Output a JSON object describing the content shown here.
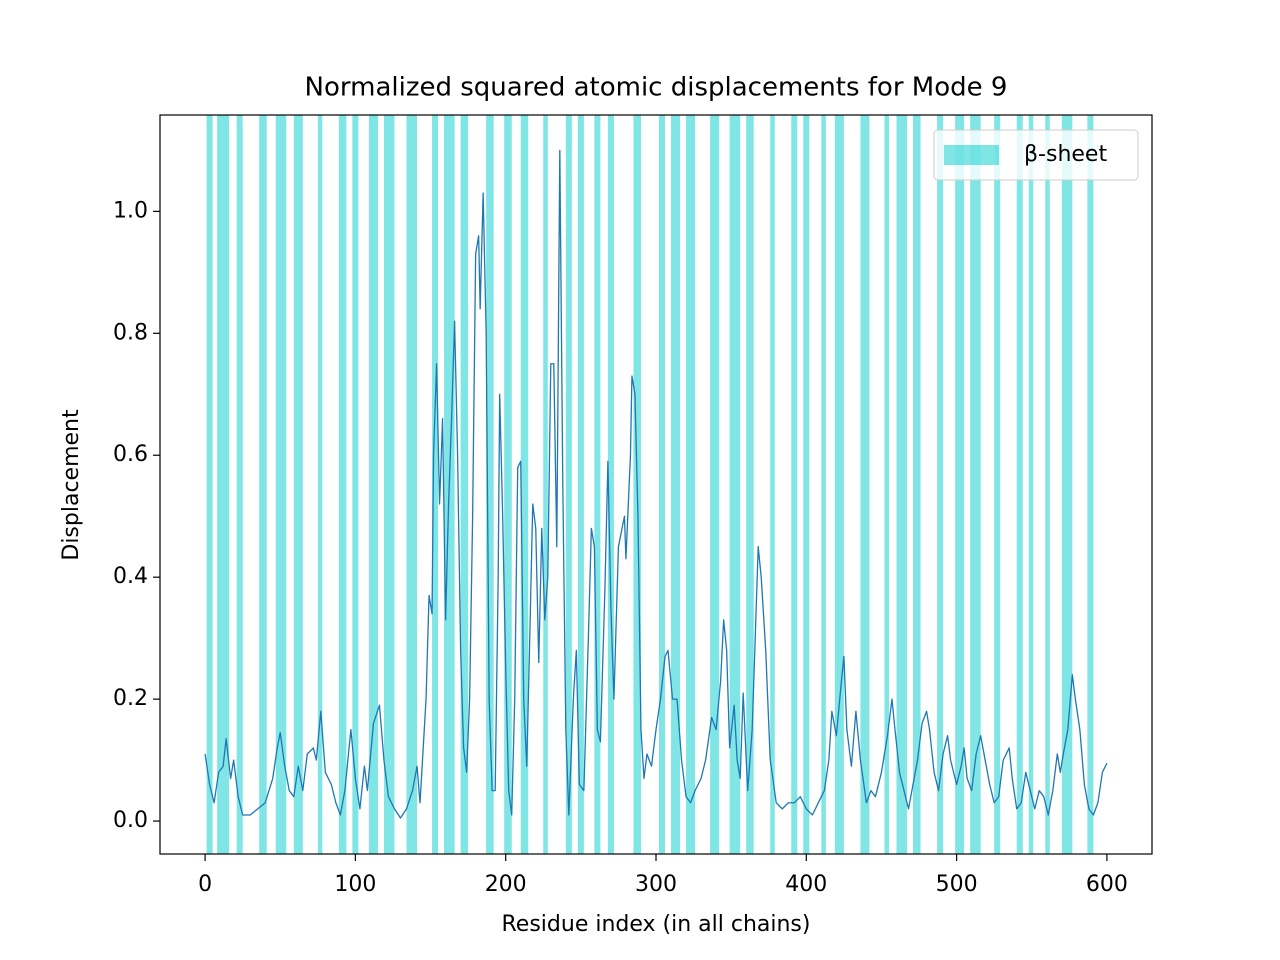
{
  "chart_data": {
    "type": "line",
    "title": "Normalized squared atomic displacements for Mode 9",
    "xlabel": "Residue index (in all chains)",
    "ylabel": "Displacement",
    "color": "#1f77b4",
    "xlim": [
      -30,
      630
    ],
    "ylim": [
      -0.054,
      1.158
    ],
    "xticks": [
      0,
      100,
      200,
      300,
      400,
      500,
      600
    ],
    "yticks": [
      {
        "value": 0,
        "label": "0.0"
      },
      0.2,
      0.4,
      0.6,
      0.8,
      {
        "value": 1,
        "label": "1.0"
      }
    ],
    "legend": "upper right",
    "spans": {
      "name": "β-sheet",
      "color": "#00cccc",
      "alpha": 0.5,
      "regions": [
        [
          1,
          5
        ],
        [
          8,
          16
        ],
        [
          21,
          25
        ],
        [
          36,
          41
        ],
        [
          47,
          54
        ],
        [
          59,
          65
        ],
        [
          75,
          78
        ],
        [
          89,
          94
        ],
        [
          98,
          102
        ],
        [
          109,
          115
        ],
        [
          119,
          126
        ],
        [
          134,
          141
        ],
        [
          151,
          155
        ],
        [
          159,
          166
        ],
        [
          170,
          175
        ],
        [
          187,
          192
        ],
        [
          199,
          204
        ],
        [
          210,
          215
        ],
        [
          225,
          228
        ],
        [
          240,
          244
        ],
        [
          248,
          252
        ],
        [
          259,
          263
        ],
        [
          268,
          272
        ],
        [
          285,
          290
        ],
        [
          302,
          306
        ],
        [
          310,
          316
        ],
        [
          320,
          326
        ],
        [
          336,
          342
        ],
        [
          349,
          356
        ],
        [
          360,
          365
        ],
        [
          376,
          379
        ],
        [
          390,
          394
        ],
        [
          398,
          402
        ],
        [
          410,
          413
        ],
        [
          419,
          425
        ],
        [
          436,
          442
        ],
        [
          452,
          455
        ],
        [
          460,
          467
        ],
        [
          471,
          476
        ],
        [
          487,
          491
        ],
        [
          499,
          505
        ],
        [
          509,
          516
        ],
        [
          525,
          529
        ],
        [
          540,
          544
        ],
        [
          548,
          551
        ],
        [
          559,
          562
        ],
        [
          570,
          577
        ],
        [
          587,
          591
        ]
      ]
    },
    "x": [
      0,
      3,
      6,
      9,
      12,
      14,
      17,
      19,
      22,
      25,
      30,
      35,
      40,
      45,
      48,
      50,
      53,
      56,
      59,
      62,
      65,
      68,
      72,
      74,
      77,
      80,
      84,
      87,
      90,
      93,
      97,
      100,
      103,
      106,
      108,
      112,
      116,
      119,
      122,
      126,
      130,
      134,
      138,
      141,
      143,
      147,
      149,
      151,
      152,
      154,
      156,
      158,
      160,
      162,
      164,
      166,
      168,
      170,
      172,
      174,
      176,
      178,
      180,
      182,
      183,
      185,
      187,
      189,
      191,
      193,
      195,
      196,
      198,
      200,
      202,
      204,
      206,
      208,
      210,
      212,
      214,
      216,
      218,
      220,
      222,
      224,
      226,
      228,
      230,
      232,
      234,
      236,
      238,
      240,
      242,
      245,
      247,
      249,
      252,
      255,
      257,
      259,
      261,
      263,
      266,
      268,
      270,
      272,
      275,
      279,
      280,
      283,
      284,
      286,
      288,
      290,
      292,
      294,
      297,
      300,
      303,
      306,
      308,
      311,
      314,
      317,
      320,
      323,
      326,
      330,
      333,
      337,
      340,
      343,
      345,
      347,
      349,
      352,
      354,
      356,
      358,
      361,
      364,
      366,
      368,
      370,
      373,
      376,
      380,
      384,
      388,
      392,
      396,
      400,
      404,
      408,
      412,
      415,
      417,
      420,
      423,
      425,
      427,
      430,
      433,
      436,
      440,
      443,
      446,
      450,
      454,
      457,
      459,
      462,
      465,
      468,
      471,
      474,
      477,
      480,
      482,
      485,
      488,
      491,
      494,
      496,
      500,
      503,
      505,
      507,
      510,
      513,
      516,
      519,
      522,
      525,
      528,
      531,
      535,
      537,
      540,
      543,
      546,
      549,
      552,
      555,
      558,
      561,
      564,
      567,
      569,
      571,
      574,
      577,
      579,
      582,
      585,
      588,
      591,
      594,
      597,
      600
    ],
    "values": [
      0.11,
      0.06,
      0.03,
      0.08,
      0.09,
      0.135,
      0.07,
      0.1,
      0.04,
      0.01,
      0.01,
      0.02,
      0.03,
      0.07,
      0.12,
      0.145,
      0.09,
      0.05,
      0.04,
      0.09,
      0.05,
      0.11,
      0.12,
      0.1,
      0.18,
      0.08,
      0.06,
      0.03,
      0.01,
      0.05,
      0.15,
      0.07,
      0.02,
      0.09,
      0.05,
      0.16,
      0.19,
      0.1,
      0.04,
      0.02,
      0.005,
      0.02,
      0.05,
      0.09,
      0.03,
      0.2,
      0.37,
      0.34,
      0.6,
      0.75,
      0.52,
      0.66,
      0.33,
      0.52,
      0.66,
      0.82,
      0.6,
      0.28,
      0.12,
      0.08,
      0.2,
      0.5,
      0.93,
      0.96,
      0.84,
      1.03,
      0.8,
      0.2,
      0.05,
      0.05,
      0.4,
      0.7,
      0.5,
      0.25,
      0.05,
      0.01,
      0.2,
      0.58,
      0.59,
      0.2,
      0.09,
      0.3,
      0.52,
      0.48,
      0.26,
      0.48,
      0.33,
      0.4,
      0.75,
      0.75,
      0.45,
      1.1,
      0.55,
      0.15,
      0.01,
      0.2,
      0.28,
      0.06,
      0.05,
      0.3,
      0.48,
      0.45,
      0.15,
      0.13,
      0.38,
      0.59,
      0.35,
      0.2,
      0.45,
      0.5,
      0.43,
      0.6,
      0.73,
      0.7,
      0.5,
      0.15,
      0.07,
      0.11,
      0.09,
      0.15,
      0.2,
      0.27,
      0.28,
      0.2,
      0.2,
      0.1,
      0.04,
      0.03,
      0.05,
      0.07,
      0.1,
      0.17,
      0.15,
      0.23,
      0.33,
      0.28,
      0.12,
      0.19,
      0.1,
      0.07,
      0.21,
      0.05,
      0.15,
      0.3,
      0.45,
      0.4,
      0.28,
      0.1,
      0.03,
      0.02,
      0.03,
      0.03,
      0.04,
      0.02,
      0.01,
      0.03,
      0.05,
      0.1,
      0.18,
      0.14,
      0.22,
      0.27,
      0.15,
      0.09,
      0.18,
      0.1,
      0.03,
      0.05,
      0.04,
      0.08,
      0.14,
      0.2,
      0.15,
      0.08,
      0.05,
      0.02,
      0.06,
      0.1,
      0.16,
      0.18,
      0.15,
      0.08,
      0.05,
      0.11,
      0.14,
      0.1,
      0.06,
      0.09,
      0.12,
      0.07,
      0.05,
      0.11,
      0.14,
      0.1,
      0.06,
      0.03,
      0.04,
      0.1,
      0.12,
      0.07,
      0.02,
      0.03,
      0.08,
      0.05,
      0.02,
      0.05,
      0.04,
      0.01,
      0.05,
      0.11,
      0.08,
      0.11,
      0.15,
      0.24,
      0.2,
      0.15,
      0.06,
      0.02,
      0.01,
      0.03,
      0.08,
      0.095
    ]
  }
}
